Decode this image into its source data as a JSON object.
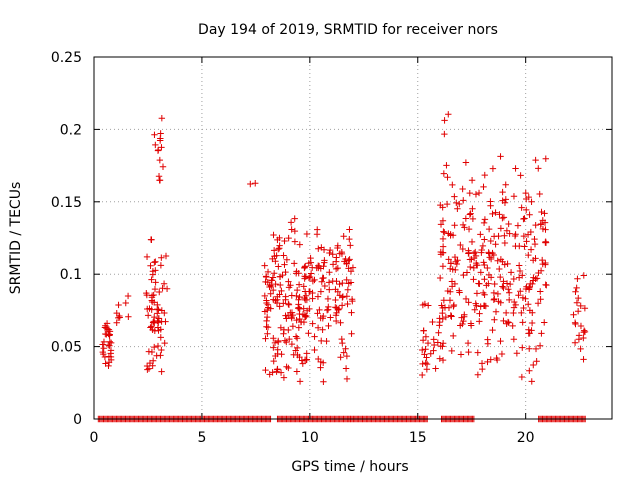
{
  "chart_data": {
    "type": "scatter",
    "title": "Day 194 of 2019, SRMTID for receiver nors",
    "xlabel": "GPS time / hours",
    "ylabel": "SRMTID / TECUs",
    "xlim": [
      0,
      24
    ],
    "ylim": [
      0,
      0.25
    ],
    "xticks": [
      0,
      5,
      10,
      15,
      20
    ],
    "yticks": [
      0,
      0.05,
      0.1,
      0.15,
      0.2,
      0.25
    ],
    "xtick_labels": [
      "0",
      "5",
      "10",
      "15",
      "20"
    ],
    "ytick_labels": [
      "0",
      "0.05",
      "0.1",
      "0.15",
      "0.2",
      "0.25"
    ],
    "grid": true,
    "marker": "+",
    "color": "#e00000",
    "seed": 194,
    "clusters": [
      {
        "x": [
          0.4,
          0.8
        ],
        "y": [
          0.03,
          0.075
        ],
        "n": 30
      },
      {
        "x": [
          1.0,
          1.2
        ],
        "y": [
          0.06,
          0.08
        ],
        "n": 6
      },
      {
        "x": [
          1.4,
          1.6
        ],
        "y": [
          0.055,
          0.1
        ],
        "n": 3
      },
      {
        "x": [
          2.4,
          3.4
        ],
        "y": [
          0.025,
          0.13
        ],
        "n": 70
      },
      {
        "x": [
          2.8,
          3.2
        ],
        "y": [
          0.14,
          0.222
        ],
        "n": 14
      },
      {
        "x": [
          7.2,
          7.5
        ],
        "y": [
          0.155,
          0.18
        ],
        "n": 2
      },
      {
        "x": [
          7.9,
          9.8
        ],
        "y": [
          0.02,
          0.14
        ],
        "n": 150
      },
      {
        "x": [
          9.7,
          12.0
        ],
        "y": [
          0.025,
          0.145
        ],
        "n": 140
      },
      {
        "x": [
          15.2,
          16.2
        ],
        "y": [
          0.025,
          0.085
        ],
        "n": 30
      },
      {
        "x": [
          16.0,
          21.0
        ],
        "y": [
          0.02,
          0.19
        ],
        "n": 320
      },
      {
        "x": [
          16.2,
          16.6
        ],
        "y": [
          0.16,
          0.22
        ],
        "n": 5
      },
      {
        "x": [
          22.2,
          22.8
        ],
        "y": [
          0.04,
          0.1
        ],
        "n": 22
      }
    ],
    "zero_segments": [
      [
        0.2,
        8.2
      ],
      [
        8.5,
        11.9
      ],
      [
        11.9,
        15.5
      ],
      [
        16.1,
        17.6
      ],
      [
        20.6,
        22.8
      ]
    ]
  }
}
